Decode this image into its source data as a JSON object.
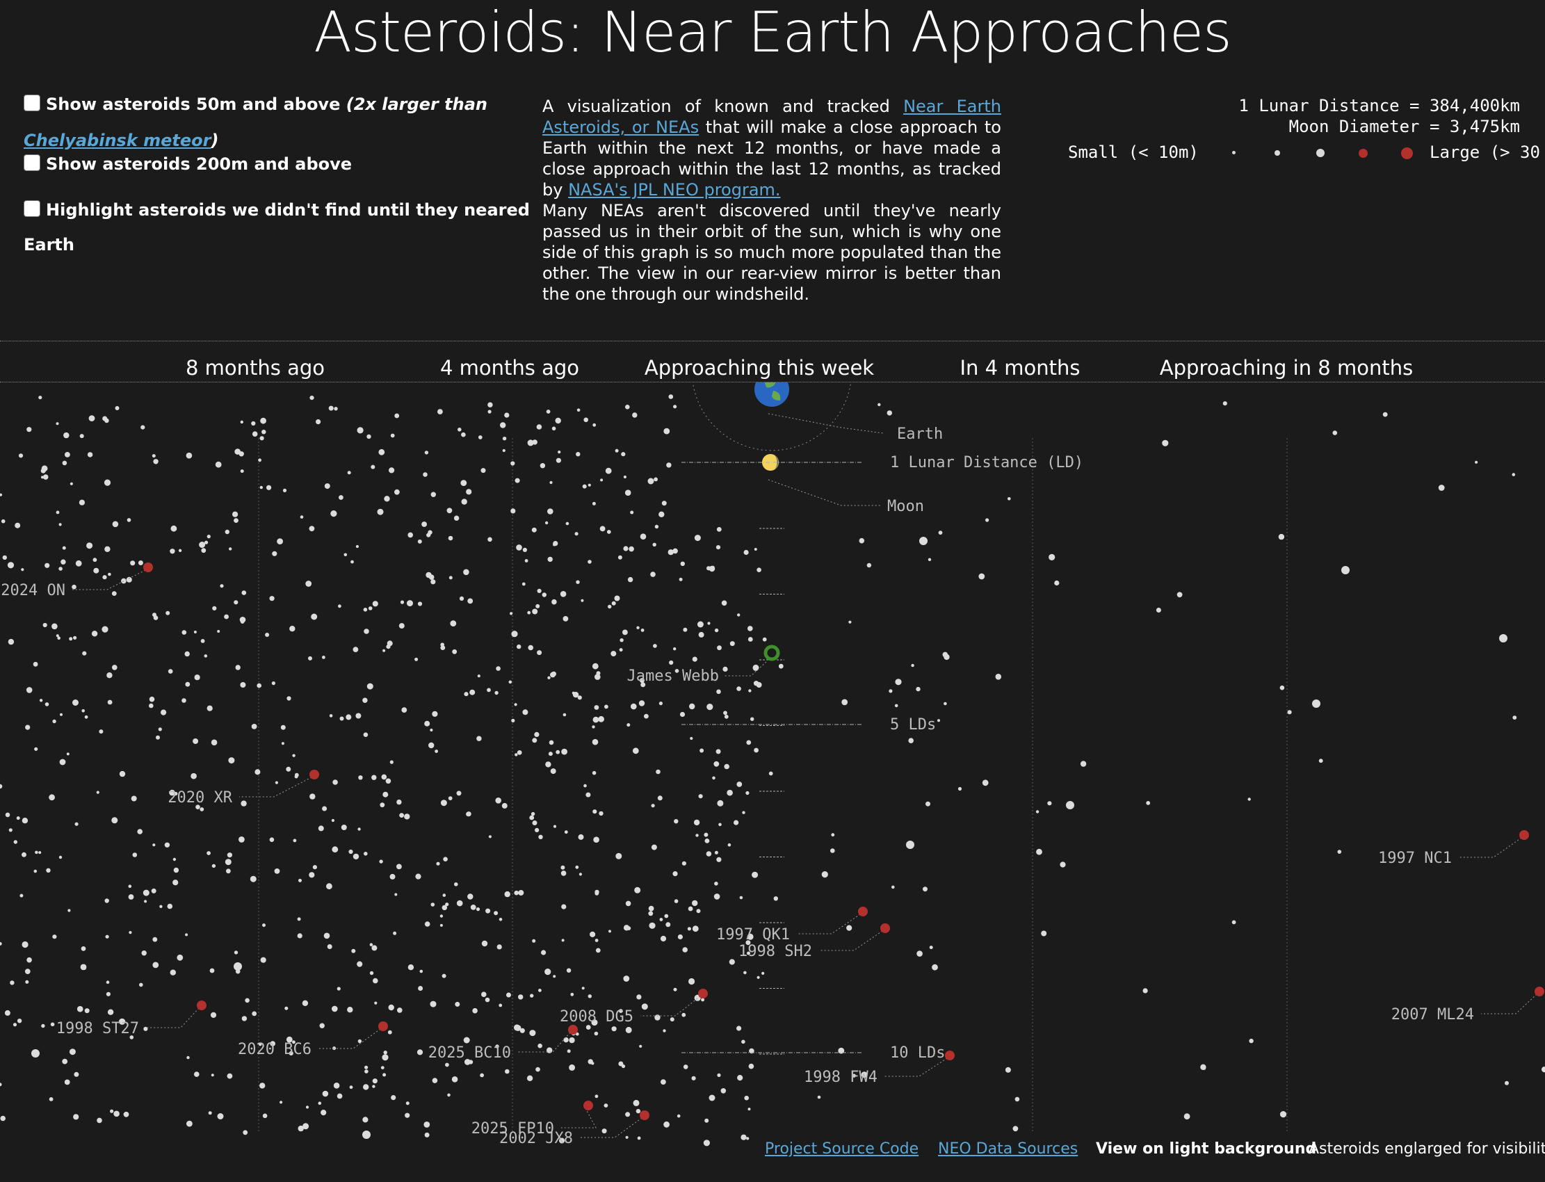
{
  "page": {
    "title": "Asteroids: Near Earth Approaches"
  },
  "controls": {
    "opt1_label": "Show asteroids 50m and above",
    "opt1_note": "(2x larger than",
    "opt1_link": "Chelyabinsk meteor",
    "opt1_close": ")",
    "opt2_label": "Show asteroids 200m and above",
    "opt3_label_a": "Highlight asteroids we didn't find until they neared",
    "opt3_label_b": "Earth"
  },
  "description": {
    "p1_a": "A visualization of known and tracked ",
    "p1_link1": "Near Earth Asteroids, or NEAs",
    "p1_b": " that will make a close approach to Earth within the next 12 months, or have made a close approach within the last 12 months, as tracked by ",
    "p1_link2": "NASA's JPL NEO program.",
    "p2": "Many NEAs aren't discovered until they've nearly passed us in their orbit of the sun, which is why one side of this graph is so much more populated than the other. The view in our rear-view mirror is better than the one through our windsheild."
  },
  "legend": {
    "line1": "1 Lunar Distance = 384,400km",
    "line2": "Moon Diameter = 3,475km",
    "small_label": "Small (< 10m)",
    "large_label": "Large (> 30",
    "colors": {
      "grey": "#d9d9d9",
      "red": "#b3302d"
    }
  },
  "timeline": {
    "headers": [
      "8 months ago",
      "4 months ago",
      "Approaching this week",
      "In 4 months",
      "Approaching in 8 months"
    ]
  },
  "viz": {
    "colors": {
      "asteroid": "#dcdcdc",
      "highlight": "#b3302d",
      "label": "#bdbdbd",
      "leader": "#9a9a9a",
      "earth_ocean": "#2a67c2",
      "earth_land": "#6aa84f",
      "moon": "#f2d45c",
      "webb": "#3f8f2a"
    },
    "reference_labels": {
      "earth": "Earth",
      "moon": "Moon",
      "one_ld": "1 Lunar Distance (LD)",
      "five_ld": "5 LDs",
      "ten_ld": "10 LDs",
      "webb": "James Webb"
    },
    "named_asteroids": [
      "2024 ON",
      "2020 XR",
      "1998 ST27",
      "2020 BC6",
      "2025 BC10",
      "2008 DG5",
      "2025 FP10",
      "2002 JX8",
      "1997 QK1",
      "1998 SH2",
      "1998 FW4",
      "1997 NC1",
      "2007 ML24"
    ]
  },
  "footer": {
    "source_link": "Project Source Code",
    "data_link": "NEO Data Sources",
    "light_bg": "View on light background",
    "note": "Asteroids englarged for visibility"
  }
}
